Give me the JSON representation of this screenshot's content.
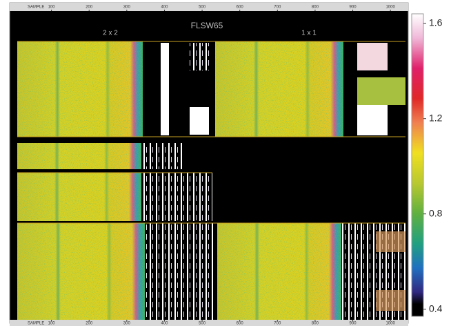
{
  "title": "FLSW65",
  "panel_labels": [
    "2 x 2",
    "1 x 1"
  ],
  "x_axis": {
    "label": "SAMPLE",
    "xlim": [
      0,
      1040
    ],
    "xticks": [
      100,
      200,
      300,
      400,
      500,
      600,
      700,
      800,
      900,
      1000
    ]
  },
  "colorbar": {
    "ylim": [
      0.37,
      1.64
    ],
    "yticks": [
      0.4,
      0.8,
      1.2,
      1.6
    ]
  }
}
